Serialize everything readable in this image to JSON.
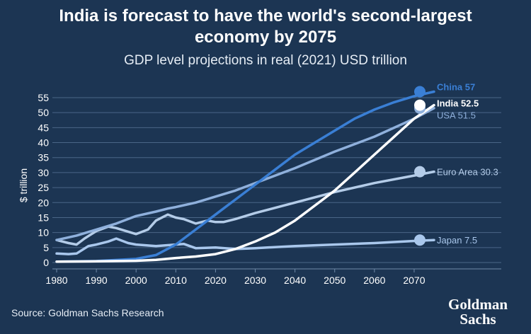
{
  "title_line1": "India is forecast to have the world's second-largest",
  "title_line2": "economy by 2075",
  "subtitle": "GDP level projections in real (2021) USD trillion",
  "source": "Source: Goldman Sachs Research",
  "logo": {
    "line1": "Goldman",
    "line2": "Sachs"
  },
  "chart_data": {
    "type": "line",
    "title": "India is forecast to have the world's second-largest economy by 2075",
    "subtitle": "GDP level projections in real (2021) USD trillion",
    "xlabel": "",
    "ylabel": "$ trillion",
    "xlim": [
      1980,
      2075
    ],
    "ylim": [
      0,
      55
    ],
    "xticks": [
      1980,
      1990,
      2000,
      2010,
      2020,
      2030,
      2040,
      2050,
      2060,
      2070
    ],
    "yticks": [
      0,
      5,
      10,
      15,
      20,
      25,
      30,
      35,
      40,
      45,
      50,
      55
    ],
    "grid": "horizontal",
    "series": [
      {
        "name": "China",
        "label": "China 57",
        "color": "#3a7fd5",
        "end_value": 57,
        "points": [
          [
            1980,
            0.3
          ],
          [
            1990,
            0.5
          ],
          [
            2000,
            1.2
          ],
          [
            2005,
            2.5
          ],
          [
            2010,
            6.0
          ],
          [
            2012,
            8
          ],
          [
            2015,
            11
          ],
          [
            2018,
            14
          ],
          [
            2020,
            16
          ],
          [
            2022,
            18
          ],
          [
            2025,
            21
          ],
          [
            2030,
            26
          ],
          [
            2035,
            31
          ],
          [
            2040,
            36
          ],
          [
            2045,
            40
          ],
          [
            2050,
            44
          ],
          [
            2055,
            48
          ],
          [
            2060,
            51
          ],
          [
            2065,
            53.5
          ],
          [
            2070,
            55.5
          ],
          [
            2075,
            57
          ]
        ]
      },
      {
        "name": "USA",
        "label": "USA 51.5",
        "color": "#8fb0dc",
        "end_value": 51.5,
        "points": [
          [
            1980,
            7.5
          ],
          [
            1985,
            9
          ],
          [
            1990,
            11
          ],
          [
            1995,
            13
          ],
          [
            2000,
            15.5
          ],
          [
            2005,
            17
          ],
          [
            2008,
            18
          ],
          [
            2010,
            18.5
          ],
          [
            2015,
            20
          ],
          [
            2020,
            22
          ],
          [
            2025,
            24
          ],
          [
            2030,
            26.5
          ],
          [
            2040,
            31.5
          ],
          [
            2050,
            37
          ],
          [
            2060,
            42
          ],
          [
            2070,
            48
          ],
          [
            2075,
            51.5
          ]
        ]
      },
      {
        "name": "India",
        "label": "India 52.5",
        "color": "#ffffff",
        "end_value": 52.5,
        "points": [
          [
            1980,
            0.3
          ],
          [
            1990,
            0.4
          ],
          [
            2000,
            0.6
          ],
          [
            2005,
            0.9
          ],
          [
            2010,
            1.5
          ],
          [
            2015,
            2.0
          ],
          [
            2020,
            2.8
          ],
          [
            2025,
            4.5
          ],
          [
            2030,
            7
          ],
          [
            2035,
            10
          ],
          [
            2040,
            14
          ],
          [
            2045,
            19
          ],
          [
            2050,
            24
          ],
          [
            2055,
            30
          ],
          [
            2060,
            36
          ],
          [
            2065,
            42
          ],
          [
            2070,
            48
          ],
          [
            2075,
            52.5
          ]
        ]
      },
      {
        "name": "Euro Area",
        "label": "Euro Area 30.3",
        "color": "#b4cce8",
        "end_value": 30.3,
        "points": [
          [
            1980,
            7.5
          ],
          [
            1983,
            6.5
          ],
          [
            1985,
            6
          ],
          [
            1987,
            8
          ],
          [
            1990,
            10.5
          ],
          [
            1993,
            12
          ],
          [
            1995,
            11.5
          ],
          [
            2000,
            9.5
          ],
          [
            2003,
            11
          ],
          [
            2005,
            14
          ],
          [
            2008,
            16
          ],
          [
            2010,
            15
          ],
          [
            2012,
            14.5
          ],
          [
            2015,
            13
          ],
          [
            2018,
            14
          ],
          [
            2020,
            13.5
          ],
          [
            2022,
            13.5
          ],
          [
            2025,
            14.5
          ],
          [
            2030,
            16.5
          ],
          [
            2040,
            20
          ],
          [
            2050,
            23.5
          ],
          [
            2060,
            26.5
          ],
          [
            2070,
            29
          ],
          [
            2075,
            30.3
          ]
        ]
      },
      {
        "name": "Japan",
        "label": "Japan 7.5",
        "color": "#a9c7ec",
        "end_value": 7.5,
        "points": [
          [
            1980,
            3
          ],
          [
            1983,
            2.8
          ],
          [
            1985,
            3
          ],
          [
            1988,
            5.5
          ],
          [
            1990,
            6
          ],
          [
            1993,
            7
          ],
          [
            1995,
            8
          ],
          [
            1998,
            6.5
          ],
          [
            2000,
            6
          ],
          [
            2005,
            5.5
          ],
          [
            2010,
            6
          ],
          [
            2012,
            6.2
          ],
          [
            2015,
            4.8
          ],
          [
            2020,
            5
          ],
          [
            2025,
            4.5
          ],
          [
            2030,
            4.8
          ],
          [
            2040,
            5.5
          ],
          [
            2050,
            6
          ],
          [
            2060,
            6.5
          ],
          [
            2070,
            7.2
          ],
          [
            2075,
            7.5
          ]
        ]
      }
    ]
  }
}
